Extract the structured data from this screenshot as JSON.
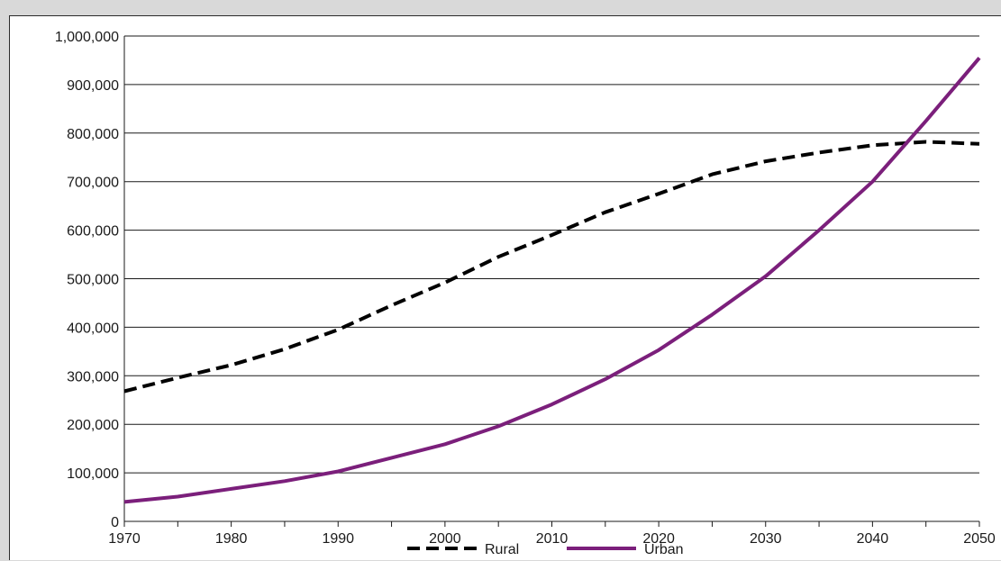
{
  "chart_data": {
    "type": "line",
    "title": "",
    "xlabel": "",
    "ylabel": "",
    "xlim": [
      1970,
      2050
    ],
    "ylim": [
      0,
      1000000
    ],
    "x_ticks": [
      1970,
      1980,
      1990,
      2000,
      2010,
      2020,
      2030,
      2040,
      2050
    ],
    "y_ticks": [
      0,
      100000,
      200000,
      300000,
      400000,
      500000,
      600000,
      700000,
      800000,
      900000,
      1000000
    ],
    "y_tick_labels": [
      "0",
      "100,000",
      "200,000",
      "300,000",
      "400,000",
      "500,000",
      "600,000",
      "700,000",
      "800,000",
      "900,000",
      "1,000,000"
    ],
    "x_tick_labels": [
      "1970",
      "1980",
      "1990",
      "2000",
      "2010",
      "2020",
      "2030",
      "2040",
      "2050"
    ],
    "grid": "horizontal",
    "legend_position": "bottom-center",
    "colors": {
      "Rural": "#000000",
      "Urban": "#7b1f7b"
    },
    "x": [
      1970,
      1975,
      1980,
      1985,
      1990,
      1995,
      2000,
      2005,
      2010,
      2015,
      2020,
      2025,
      2030,
      2035,
      2040,
      2045,
      2050
    ],
    "series": [
      {
        "name": "Rural",
        "style": "dashed",
        "values": [
          268000,
          296000,
          322000,
          355000,
          395000,
          445000,
          492000,
          545000,
          590000,
          637000,
          675000,
          715000,
          742000,
          760000,
          775000,
          782000,
          778000
        ]
      },
      {
        "name": "Urban",
        "style": "solid",
        "values": [
          40000,
          51000,
          67000,
          83000,
          103000,
          131000,
          159000,
          196000,
          241000,
          293000,
          353000,
          426000,
          505000,
          600000,
          700000,
          825000,
          955000
        ]
      }
    ]
  }
}
